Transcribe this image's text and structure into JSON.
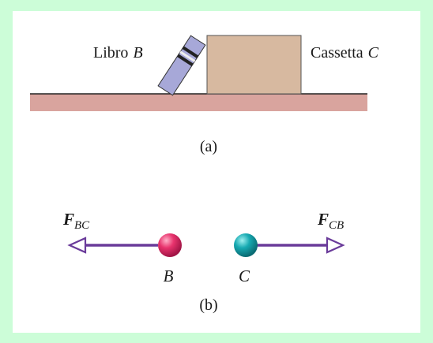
{
  "panel_a": {
    "book_label": "Libro",
    "book_letter": "B",
    "box_label": "Cassetta",
    "box_letter": "C",
    "caption": "(a)"
  },
  "panel_b": {
    "force_left": {
      "symbol": "F",
      "subscript": "BC"
    },
    "force_right": {
      "symbol": "F",
      "subscript": "CB"
    },
    "particle_left": "B",
    "particle_right": "C",
    "caption": "(b)"
  },
  "colors": {
    "background_frame": "#ccfdd8",
    "table_fill": "#d9a49e",
    "book_fill": "#a7a8d8",
    "box_fill": "#d7b9a0",
    "arrow": "#6a3b9a",
    "particle_b": "#e0306a",
    "particle_c": "#16a9b0"
  }
}
